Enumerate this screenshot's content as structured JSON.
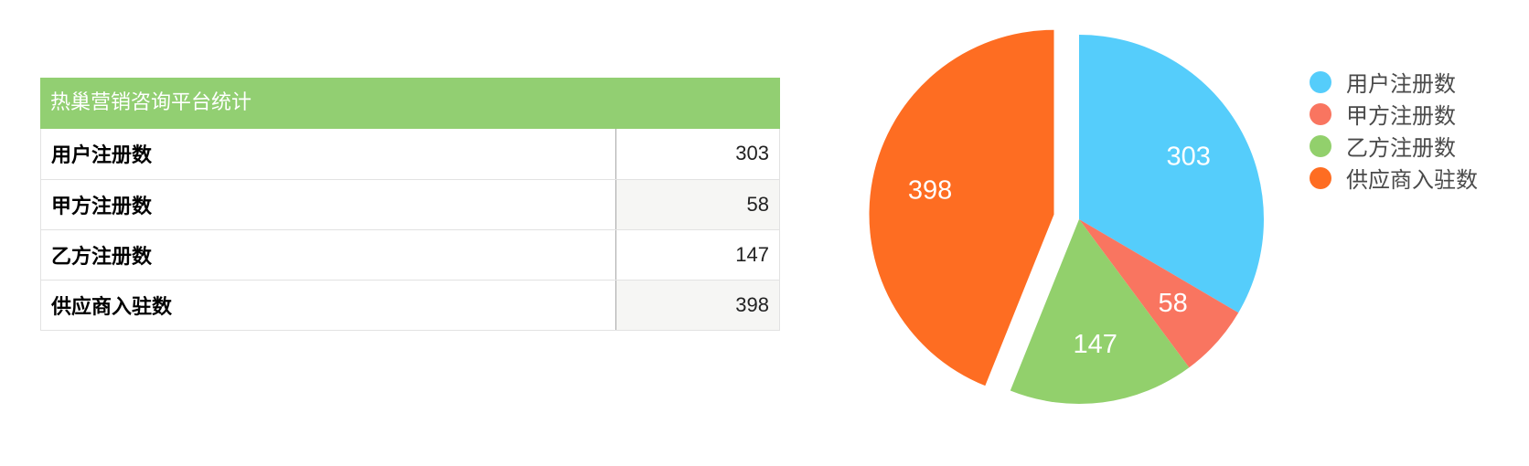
{
  "table": {
    "title": "热巢营销咨询平台统计",
    "rows": [
      {
        "label": "用户注册数",
        "value": "303"
      },
      {
        "label": "甲方注册数",
        "value": "58"
      },
      {
        "label": "乙方注册数",
        "value": "147"
      },
      {
        "label": "供应商入驻数",
        "value": "398"
      }
    ]
  },
  "chart_data": {
    "type": "pie",
    "categories": [
      "用户注册数",
      "甲方注册数",
      "乙方注册数",
      "供应商入驻数"
    ],
    "values": [
      303,
      58,
      147,
      398
    ],
    "colors": [
      "#55cdfb",
      "#f97560",
      "#92d06c",
      "#fe6d22"
    ],
    "exploded_slice": "供应商入驻数",
    "legend_position": "right",
    "title": ""
  }
}
